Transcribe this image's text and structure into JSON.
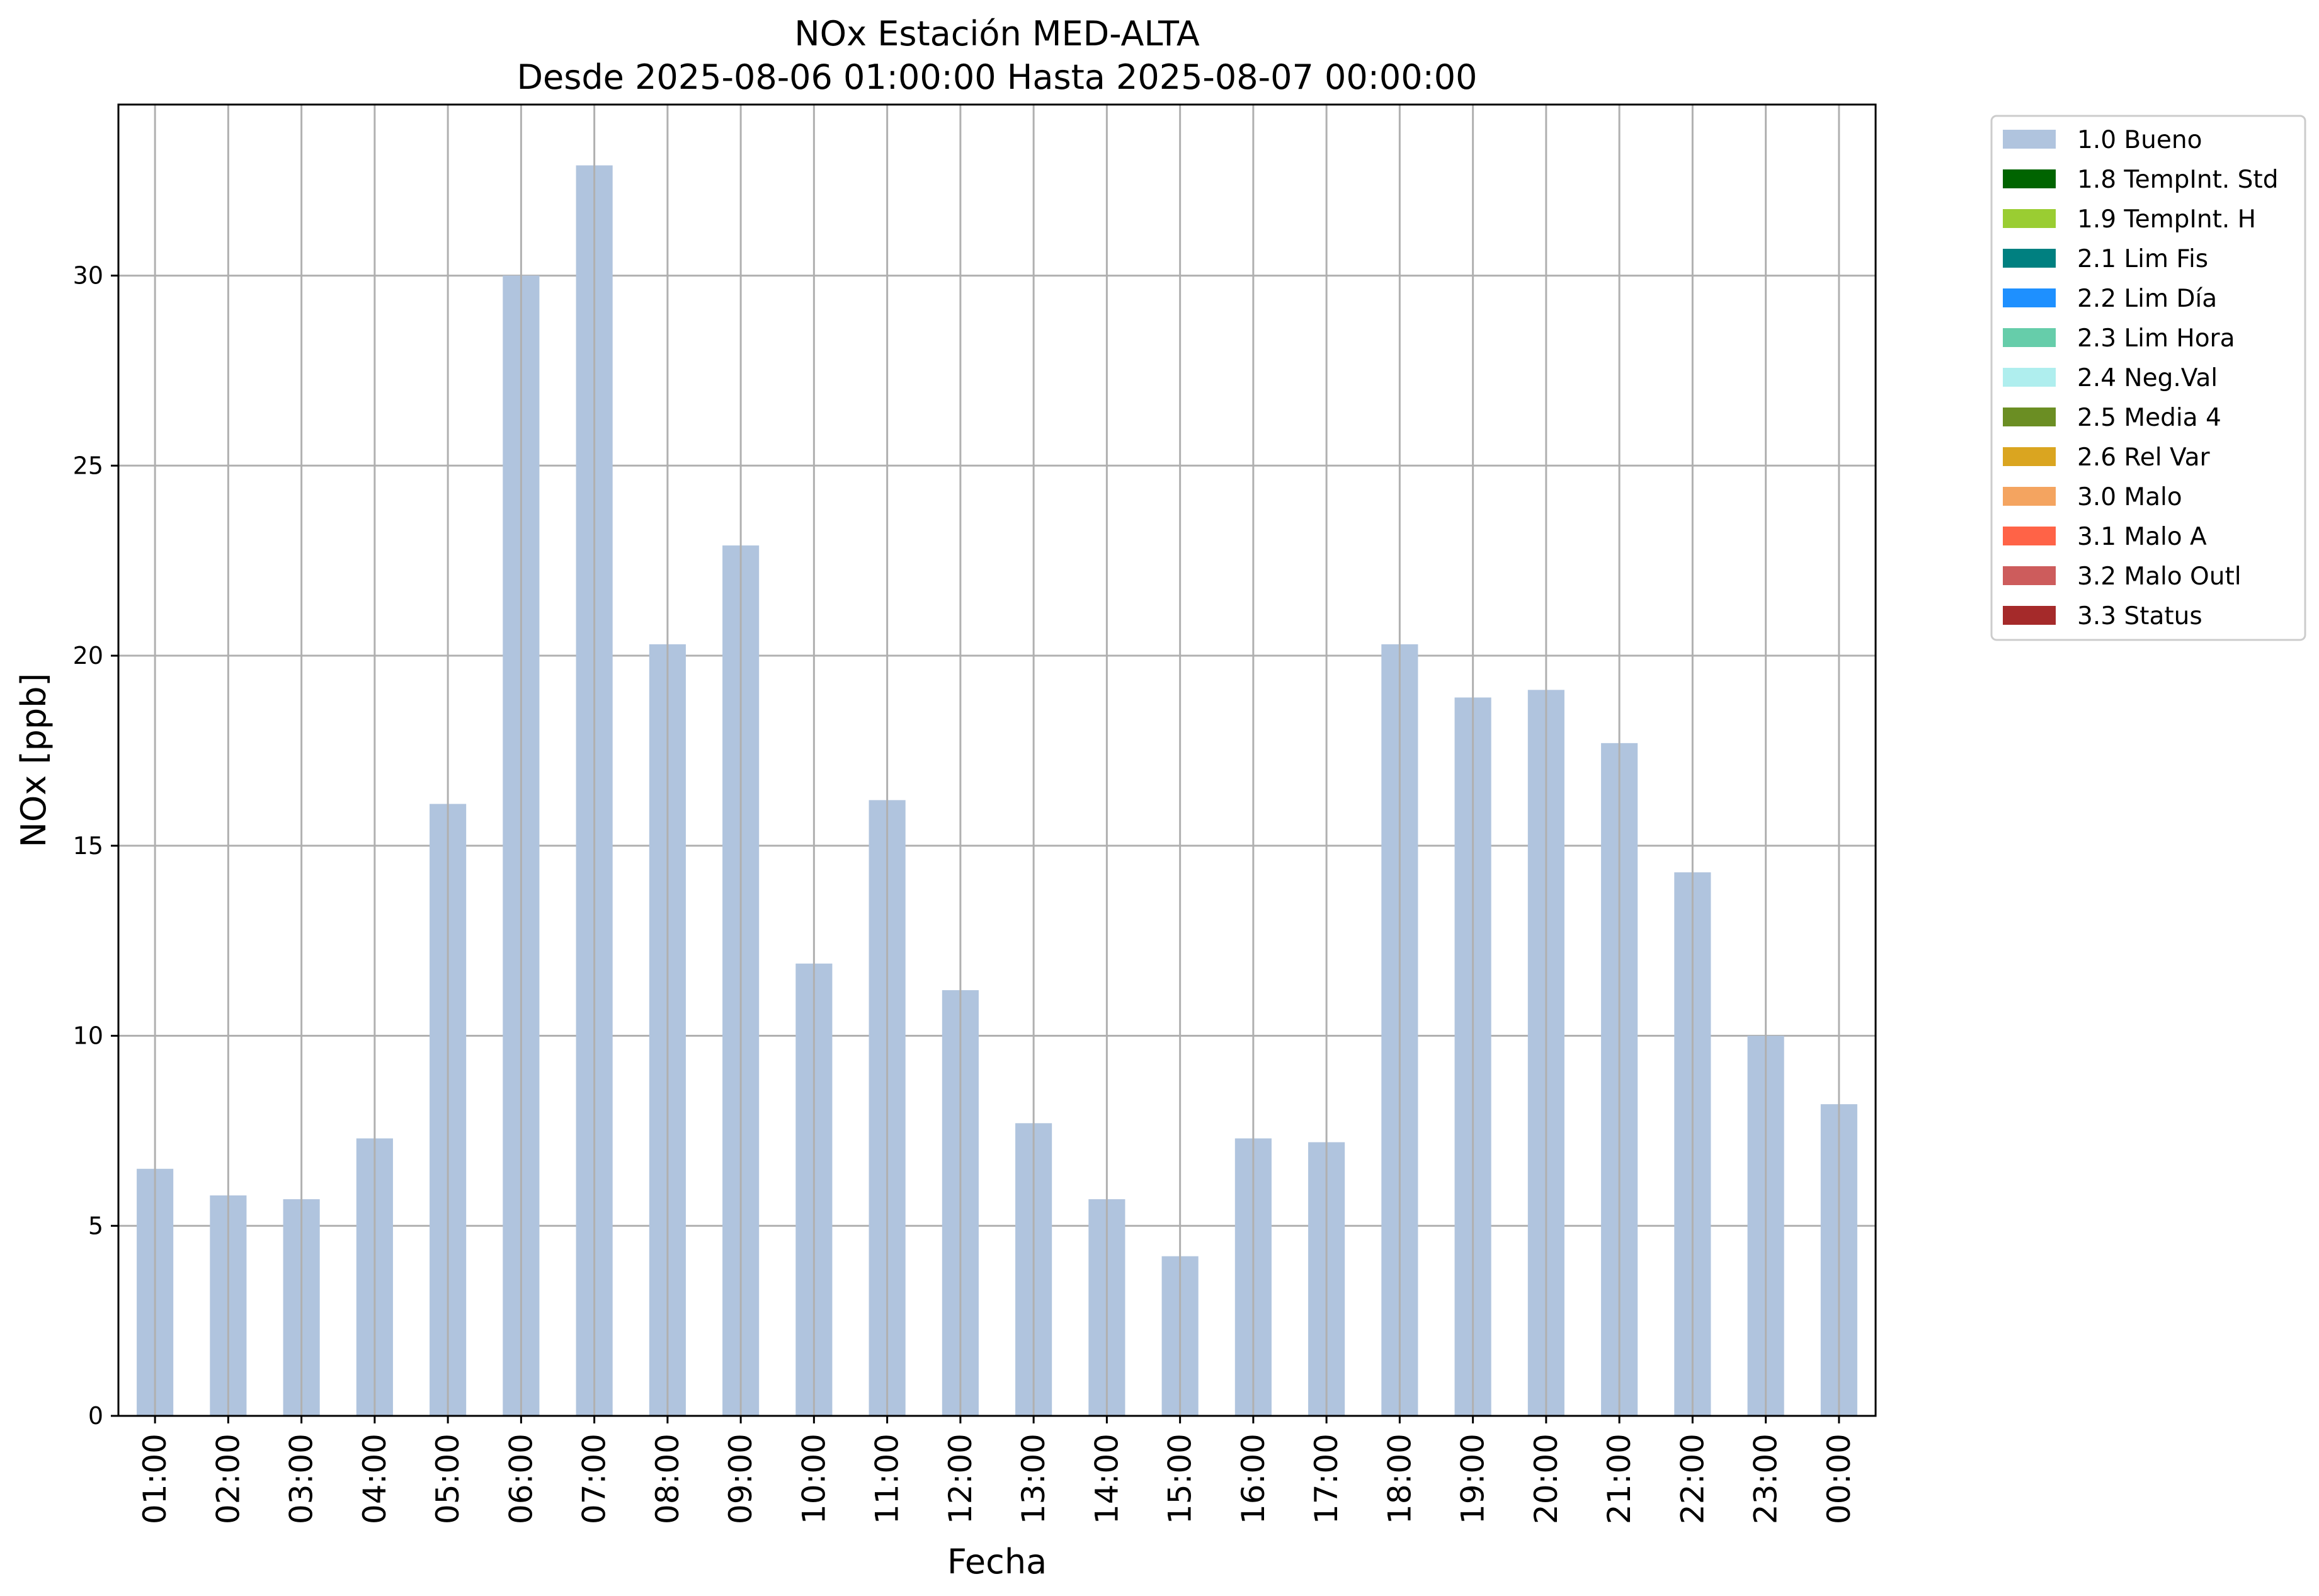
{
  "chart_data": {
    "type": "bar",
    "title": "NOx Estación MED-ALTA",
    "subtitle": "Desde 2025-08-06 01:00:00 Hasta 2025-08-07 00:00:00",
    "xlabel": "Fecha",
    "ylabel": "NOx [ppb]",
    "ylim": [
      0,
      34.5
    ],
    "yticks": [
      0,
      5,
      10,
      15,
      20,
      25,
      30
    ],
    "grid": true,
    "legend_position": "outside top-right",
    "categories": [
      "01:00",
      "02:00",
      "03:00",
      "04:00",
      "05:00",
      "06:00",
      "07:00",
      "08:00",
      "09:00",
      "10:00",
      "11:00",
      "12:00",
      "13:00",
      "14:00",
      "15:00",
      "16:00",
      "17:00",
      "18:00",
      "19:00",
      "20:00",
      "21:00",
      "22:00",
      "23:00",
      "00:00"
    ],
    "series": [
      {
        "name": "1.0 Bueno",
        "color": "#b0c4de",
        "values": [
          6.5,
          5.8,
          5.7,
          7.3,
          16.1,
          30.0,
          32.9,
          20.3,
          22.9,
          11.9,
          16.2,
          11.2,
          7.7,
          5.7,
          4.2,
          7.3,
          7.2,
          20.3,
          18.9,
          19.1,
          17.7,
          14.3,
          10.0,
          8.2
        ]
      }
    ],
    "legend": [
      {
        "label": "1.0 Bueno",
        "color": "#b0c4de"
      },
      {
        "label": "1.8 TempInt. Std",
        "color": "#006400"
      },
      {
        "label": "1.9 TempInt. H",
        "color": "#9acd32"
      },
      {
        "label": "2.1 Lim Fis",
        "color": "#008080"
      },
      {
        "label": "2.2 Lim Día",
        "color": "#1e90ff"
      },
      {
        "label": "2.3 Lim Hora",
        "color": "#66cdaa"
      },
      {
        "label": "2.4 Neg.Val",
        "color": "#afeeee"
      },
      {
        "label": "2.5 Media 4",
        "color": "#6b8e23"
      },
      {
        "label": "2.6 Rel Var",
        "color": "#daa520"
      },
      {
        "label": "3.0 Malo",
        "color": "#f4a460"
      },
      {
        "label": "3.1 Malo A",
        "color": "#ff6347"
      },
      {
        "label": "3.2 Malo Outl",
        "color": "#cd5c5c"
      },
      {
        "label": "3.3 Status",
        "color": "#a52a2a"
      }
    ]
  }
}
